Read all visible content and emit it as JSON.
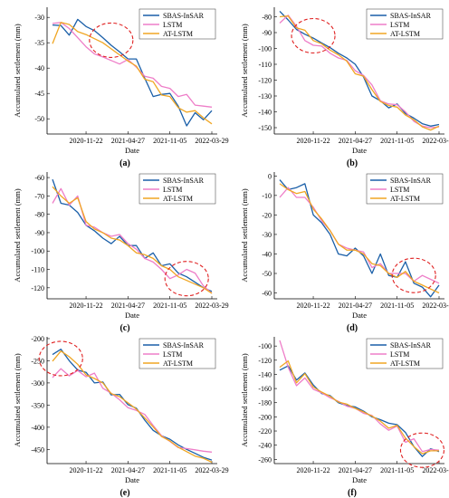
{
  "legend": {
    "sbas": "SBAS-InSAR",
    "lstm": "LSTM",
    "atlstm": "AT-LSTM"
  },
  "colors": {
    "sbas": "#1a5fa8",
    "lstm": "#ee7ec8",
    "atlstm": "#f0a623",
    "highlight": "#e02020"
  },
  "xlabel": "Date",
  "ylabel": "Accumulated settlement (mm)",
  "x_ticks": [
    "2020-11-22",
    "2021-04-27",
    "2021-11-05",
    "2022-03-29"
  ],
  "chart_data": [
    {
      "type": "line",
      "caption": "(a)",
      "ylim": [
        -53,
        -28
      ],
      "yticks": [
        -30,
        -35,
        -40,
        -45,
        -50
      ],
      "series": [
        {
          "name": "SBAS-InSAR",
          "values": [
            -31.5,
            -31.6,
            -33.5,
            -30.4,
            -31.8,
            -32.6,
            -34.0,
            -35.5,
            -36.8,
            -38.2,
            -38.2,
            -42.0,
            -45.6,
            -45.2,
            -45.0,
            -47.5,
            -51.4,
            -48.8,
            -50.2,
            -48.4
          ]
        },
        {
          "name": "LSTM",
          "values": [
            -31.2,
            -31.0,
            -32.2,
            -34.0,
            -35.8,
            -37.2,
            -37.8,
            -38.5,
            -39.2,
            -38.3,
            -39.8,
            -41.6,
            -42.0,
            -43.6,
            -44.0,
            -45.6,
            -45.2,
            -47.3,
            -47.5,
            -47.7
          ]
        },
        {
          "name": "AT-LSTM",
          "values": [
            -35.2,
            -31.0,
            -31.4,
            -32.8,
            -33.4,
            -34.2,
            -35.0,
            -36.2,
            -37.4,
            -38.6,
            -39.6,
            -42.2,
            -42.7,
            -45.3,
            -45.6,
            -47.8,
            -48.7,
            -48.4,
            -49.8,
            -51.0
          ]
        }
      ],
      "highlight": {
        "x_index": 7,
        "y": -34.5
      }
    },
    {
      "type": "line",
      "caption": "(b)",
      "ylim": [
        -154,
        -74
      ],
      "yticks": [
        -80,
        -90,
        -100,
        -110,
        -120,
        -130,
        -140,
        -150
      ],
      "series": [
        {
          "name": "SBAS-InSAR",
          "values": [
            -76.5,
            -82.0,
            -88.0,
            -91.0,
            -93.5,
            -96.5,
            -99.5,
            -103.0,
            -106.0,
            -110.0,
            -118.0,
            -130.0,
            -133.0,
            -137.5,
            -135.0,
            -141.0,
            -144.0,
            -147.5,
            -149.0,
            -148.0
          ]
        },
        {
          "name": "LSTM",
          "values": [
            -84.0,
            -79.0,
            -86.0,
            -95.0,
            -98.0,
            -98.5,
            -103.0,
            -106.0,
            -107.5,
            -114.0,
            -117.0,
            -123.0,
            -133.0,
            -135.0,
            -135.5,
            -140.0,
            -146.0,
            -149.0,
            -150.0,
            -149.5
          ]
        },
        {
          "name": "AT-LSTM",
          "values": [
            -80.0,
            -79.5,
            -87.0,
            -88.5,
            -95.0,
            -97.0,
            -101.0,
            -104.0,
            -108.0,
            -116.0,
            -117.5,
            -126.0,
            -133.5,
            -136.0,
            -137.0,
            -142.0,
            -145.0,
            -149.5,
            -151.5,
            -149.0
          ]
        }
      ],
      "highlight": {
        "x_index": 4,
        "y": -92
      }
    },
    {
      "type": "line",
      "caption": "(c)",
      "ylim": [
        -126,
        -57
      ],
      "yticks": [
        -60,
        -70,
        -80,
        -90,
        -100,
        -110,
        -120
      ],
      "series": [
        {
          "name": "SBAS-InSAR",
          "values": [
            -61.0,
            -74.0,
            -75.0,
            -79.0,
            -86.0,
            -89.0,
            -93.0,
            -96.0,
            -92.0,
            -97.0,
            -97.0,
            -104.0,
            -101.0,
            -108.0,
            -107.0,
            -112.0,
            -114.0,
            -117.0,
            -120.0,
            -122.0
          ]
        },
        {
          "name": "LSTM",
          "values": [
            -74.0,
            -66.0,
            -75.0,
            -70.0,
            -86.0,
            -87.0,
            -90.0,
            -92.0,
            -91.0,
            -96.0,
            -99.0,
            -104.0,
            -106.0,
            -110.0,
            -115.0,
            -113.0,
            -110.0,
            -112.0,
            -119.0,
            -123.0
          ]
        },
        {
          "name": "AT-LSTM",
          "values": [
            -65.0,
            -70.0,
            -74.0,
            -71.0,
            -84.0,
            -88.0,
            -90.0,
            -93.0,
            -94.0,
            -97.0,
            -101.0,
            -102.0,
            -104.0,
            -108.0,
            -110.0,
            -114.0,
            -116.0,
            -118.0,
            -120.0,
            -123.0
          ]
        }
      ],
      "highlight": {
        "x_index": 16,
        "y": -115
      }
    },
    {
      "type": "line",
      "caption": "(d)",
      "ylim": [
        -63,
        2
      ],
      "yticks": [
        0,
        -10,
        -20,
        -30,
        -40,
        -50,
        -60
      ],
      "series": [
        {
          "name": "SBAS-InSAR",
          "values": [
            -2.0,
            -7.0,
            -6.0,
            -4.0,
            -20.0,
            -24.0,
            -30.0,
            -40.0,
            -41.0,
            -37.0,
            -41.0,
            -50.0,
            -40.0,
            -51.0,
            -52.0,
            -44.0,
            -55.0,
            -57.0,
            -62.0,
            -56.0
          ]
        },
        {
          "name": "LSTM",
          "values": [
            -11.0,
            -6.0,
            -11.0,
            -11.0,
            -16.0,
            -23.0,
            -28.0,
            -35.0,
            -37.0,
            -38.0,
            -39.0,
            -47.0,
            -45.0,
            -50.0,
            -50.0,
            -50.0,
            -54.0,
            -51.0,
            -53.0,
            -55.0
          ]
        },
        {
          "name": "AT-LSTM",
          "values": [
            -4.0,
            -7.0,
            -9.0,
            -8.0,
            -17.0,
            -22.0,
            -28.0,
            -35.0,
            -38.0,
            -38.0,
            -40.0,
            -45.0,
            -46.0,
            -50.0,
            -52.0,
            -49.0,
            -54.0,
            -56.0,
            -58.0,
            -60.0
          ]
        }
      ],
      "highlight": {
        "x_index": 16,
        "y": -51
      }
    },
    {
      "type": "line",
      "caption": "(e)",
      "ylim": [
        -482,
        -196
      ],
      "yticks": [
        -200,
        -250,
        -300,
        -350,
        -400,
        -450
      ],
      "series": [
        {
          "name": "SBAS-InSAR",
          "values": [
            -236.0,
            -224.0,
            -250.0,
            -271.0,
            -276.0,
            -300.0,
            -298.0,
            -327.0,
            -326.0,
            -349.0,
            -357.0,
            -384.0,
            -407.0,
            -419.0,
            -427.0,
            -440.0,
            -450.0,
            -459.0,
            -468.0,
            -474.0
          ]
        },
        {
          "name": "LSTM",
          "values": [
            -288.0,
            -268.0,
            -284.0,
            -272.0,
            -286.0,
            -278.0,
            -312.0,
            -323.0,
            -338.0,
            -356.0,
            -362.0,
            -371.0,
            -396.0,
            -419.0,
            -432.0,
            -446.0,
            -448.0,
            -451.0,
            -454.0,
            -456.0
          ]
        },
        {
          "name": "AT-LSTM",
          "values": [
            -251.0,
            -228.0,
            -241.0,
            -258.0,
            -282.0,
            -290.0,
            -300.0,
            -324.0,
            -331.0,
            -345.0,
            -359.0,
            -379.0,
            -399.0,
            -421.0,
            -431.0,
            -445.0,
            -455.0,
            -465.0,
            -470.0,
            -479.0
          ]
        }
      ],
      "highlight": {
        "x_index": 1,
        "y": -245
      }
    },
    {
      "type": "line",
      "caption": "(f)",
      "ylim": [
        -266,
        -87
      ],
      "yticks": [
        -100,
        -120,
        -140,
        -160,
        -180,
        -200,
        -220,
        -240,
        -260
      ],
      "series": [
        {
          "name": "SBAS-InSAR",
          "values": [
            -134.0,
            -128.0,
            -148.0,
            -138.0,
            -155.0,
            -167.0,
            -170.0,
            -180.0,
            -184.0,
            -186.0,
            -192.0,
            -200.0,
            -204.0,
            -209.0,
            -211.0,
            -222.0,
            -242.0,
            -256.0,
            -245.0,
            -249.0
          ]
        },
        {
          "name": "LSTM",
          "values": [
            -92.0,
            -130.0,
            -156.0,
            -145.0,
            -161.0,
            -166.0,
            -173.0,
            -178.0,
            -185.0,
            -188.0,
            -195.0,
            -198.0,
            -210.0,
            -219.0,
            -213.0,
            -236.0,
            -231.0,
            -249.0,
            -246.0,
            -247.0
          ]
        },
        {
          "name": "AT-LSTM",
          "values": [
            -130.0,
            -121.0,
            -152.0,
            -139.0,
            -158.0,
            -165.0,
            -171.0,
            -179.0,
            -182.0,
            -188.0,
            -193.0,
            -199.0,
            -206.0,
            -216.0,
            -212.0,
            -230.0,
            -242.0,
            -252.0,
            -248.0,
            -248.0
          ]
        }
      ],
      "highlight": {
        "x_index": 17,
        "y": -247
      }
    }
  ]
}
